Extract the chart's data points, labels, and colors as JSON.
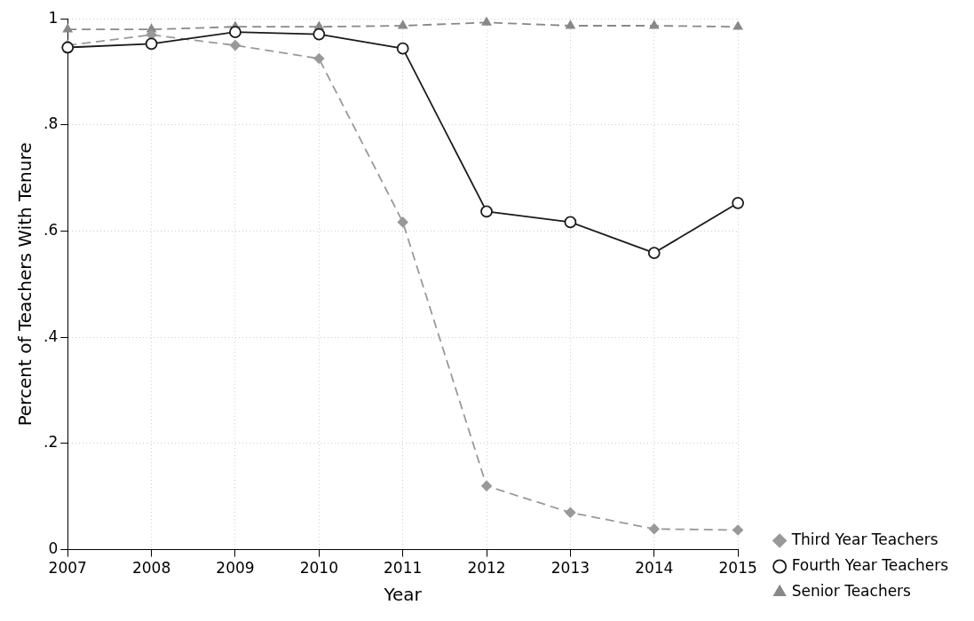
{
  "chart_data": {
    "type": "line",
    "xlabel": "Year",
    "ylabel": "Percent of Teachers With Tenure",
    "x": [
      2007,
      2008,
      2009,
      2010,
      2011,
      2012,
      2013,
      2014,
      2015
    ],
    "xlim": [
      2007,
      2015
    ],
    "xticks": [
      2007,
      2008,
      2009,
      2010,
      2011,
      2012,
      2013,
      2014,
      2015
    ],
    "ylim": [
      0,
      1
    ],
    "yticks": [
      {
        "value": 0,
        "label": "0"
      },
      {
        "value": 0.2,
        "label": ".2"
      },
      {
        "value": 0.4,
        "label": ".4"
      },
      {
        "value": 0.6,
        "label": ".6"
      },
      {
        "value": 0.8,
        "label": ".8"
      },
      {
        "value": 1,
        "label": "1"
      }
    ],
    "grid": true,
    "legend": "bottom right",
    "series": [
      {
        "name": "Third Year Teachers",
        "color": "#999999",
        "marker": "diamond",
        "line_style": "dashed",
        "values": [
          0.95,
          0.97,
          0.95,
          0.925,
          0.617,
          0.12,
          0.07,
          0.039,
          0.037
        ]
      },
      {
        "name": "Fourth Year Teachers",
        "color": "#1a1a1a",
        "marker": "circle",
        "line_style": "solid",
        "values": [
          0.946,
          0.953,
          0.975,
          0.971,
          0.944,
          0.637,
          0.617,
          0.559,
          0.653
        ]
      },
      {
        "name": "Senior Teachers",
        "color": "#888888",
        "marker": "triangle",
        "line_style": "dashed",
        "values": [
          0.98,
          0.98,
          0.985,
          0.985,
          0.987,
          0.993,
          0.987,
          0.987,
          0.985
        ]
      }
    ]
  }
}
